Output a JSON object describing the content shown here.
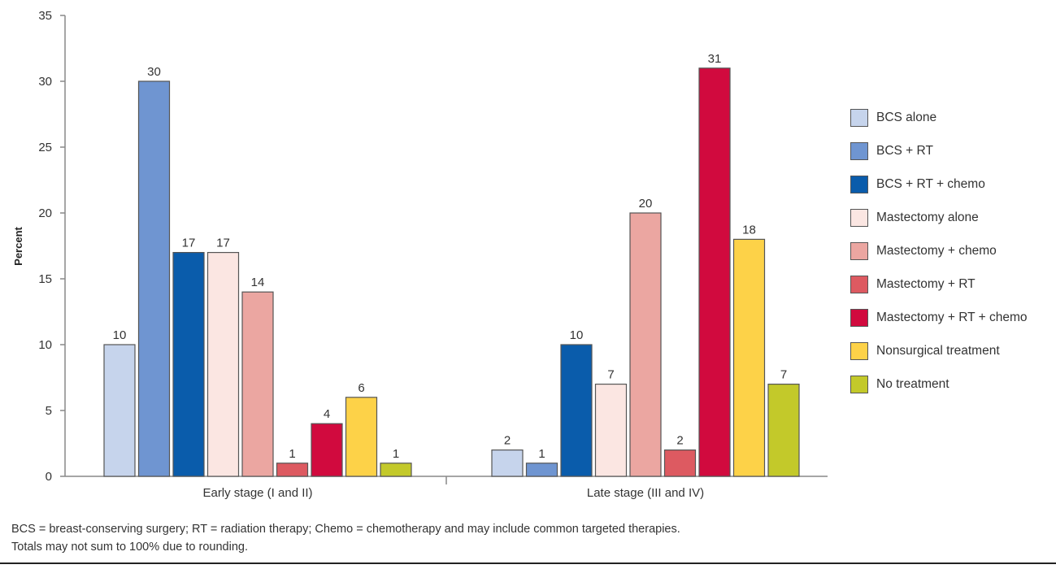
{
  "chart_data": {
    "type": "bar",
    "title": "",
    "xlabel": "",
    "ylabel": "Percent",
    "ylim": [
      0,
      35
    ],
    "yticks": [
      0,
      5,
      10,
      15,
      20,
      25,
      30,
      35
    ],
    "categories": [
      "Early stage (I and II)",
      "Late stage (III and IV)"
    ],
    "series": [
      {
        "name": "BCS alone",
        "color": "#c6d4ec",
        "values": [
          10,
          2
        ]
      },
      {
        "name": "BCS + RT",
        "color": "#6f95d1",
        "values": [
          30,
          1
        ]
      },
      {
        "name": "BCS + RT + chemo",
        "color": "#0a5cab",
        "values": [
          17,
          10
        ]
      },
      {
        "name": "Mastectomy alone",
        "color": "#fbe6e2",
        "values": [
          17,
          7
        ]
      },
      {
        "name": "Mastectomy + chemo",
        "color": "#eba6a1",
        "values": [
          14,
          20
        ]
      },
      {
        "name": "Mastectomy + RT",
        "color": "#dd5a61",
        "values": [
          1,
          2
        ]
      },
      {
        "name": "Mastectomy + RT + chemo",
        "color": "#d10a3e",
        "values": [
          4,
          31
        ]
      },
      {
        "name": "Nonsurgical treatment",
        "color": "#fdd248",
        "values": [
          6,
          18
        ]
      },
      {
        "name": "No treatment",
        "color": "#c3c92a",
        "values": [
          1,
          7
        ]
      }
    ],
    "legend_position": "right"
  },
  "footnotes": [
    "BCS = breast-conserving surgery; RT = radiation therapy; Chemo = chemotherapy and may include common targeted therapies.",
    "Totals may not sum to 100% due to rounding."
  ]
}
